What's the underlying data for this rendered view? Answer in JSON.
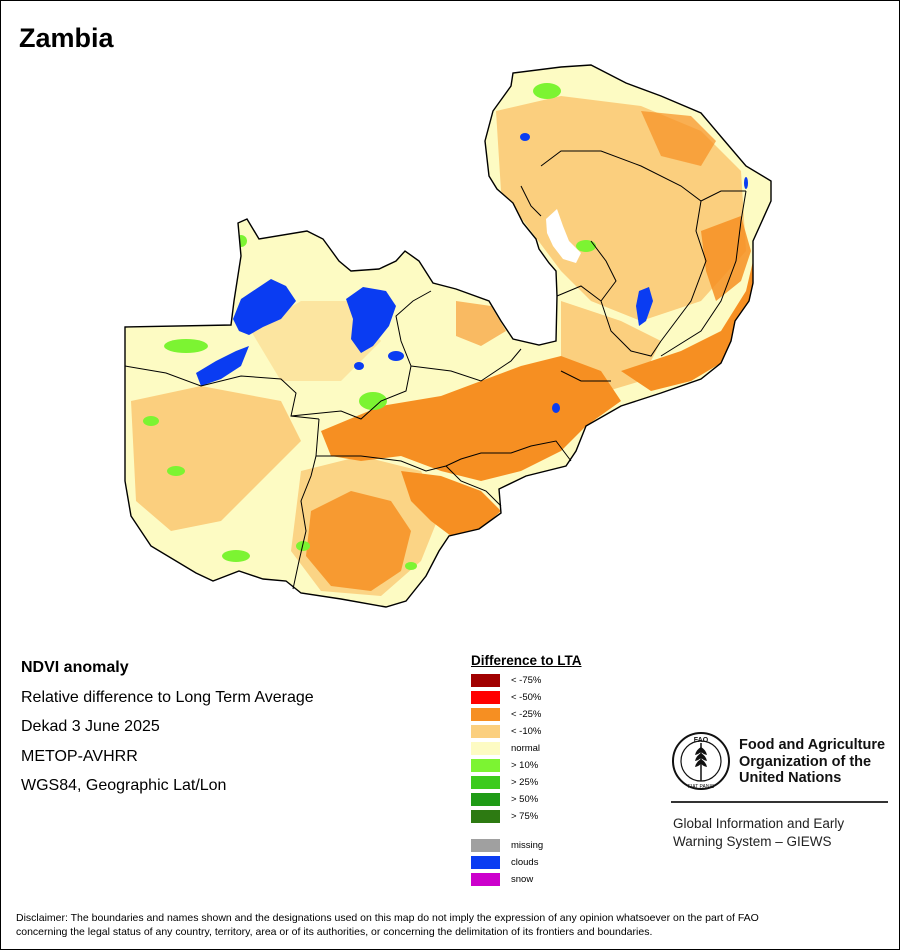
{
  "map": {
    "title": "Zambia",
    "colors": {
      "normal": "#fdfbc3",
      "neg10": "#fbcf7e",
      "neg25": "#f68f22",
      "pos10": "#7cf432",
      "clouds": "#0a3cf2",
      "missing": "#a0a0a0",
      "border": "#000000"
    }
  },
  "info": {
    "heading": "NDVI anomaly",
    "line1": "Relative difference to Long Term Average",
    "line2": "Dekad 3 June 2025",
    "line3": "METOP-AVHRR",
    "line4": "WGS84, Geographic Lat/Lon"
  },
  "legend": {
    "title": "Difference to LTA",
    "items": [
      {
        "label": "< -75%",
        "color": "#a10000"
      },
      {
        "label": "< -50%",
        "color": "#ff0000"
      },
      {
        "label": "< -25%",
        "color": "#f68f22"
      },
      {
        "label": "< -10%",
        "color": "#fbcf7e"
      },
      {
        "label": "normal",
        "color": "#fdfbc3"
      },
      {
        "label": "> 10%",
        "color": "#7cf432"
      },
      {
        "label": "> 25%",
        "color": "#3ccb1c"
      },
      {
        "label": "> 50%",
        "color": "#1f9b16"
      },
      {
        "label": "> 75%",
        "color": "#2d7a12"
      }
    ],
    "extra": [
      {
        "label": "missing",
        "color": "#a0a0a0"
      },
      {
        "label": "clouds",
        "color": "#0a3cf2"
      },
      {
        "label": "snow",
        "color": "#cc00cc"
      }
    ]
  },
  "logo": {
    "org_line1": "Food and Agriculture",
    "org_line2": "Organization of the",
    "org_line3": "United Nations",
    "emblem_letters": "FAO",
    "motto": "FIAT PANIS",
    "giews_line1": "Global Information and Early",
    "giews_line2": "Warning System – GIEWS"
  },
  "disclaimer": {
    "line1": "Disclaimer: The boundaries and names shown and the designations used on this map do not imply the expression of any opinion whatsoever on the part of FAO",
    "line2": "concerning the legal status of any country, territory, area or of its authorities, or concerning the delimitation of its frontiers and boundaries."
  }
}
